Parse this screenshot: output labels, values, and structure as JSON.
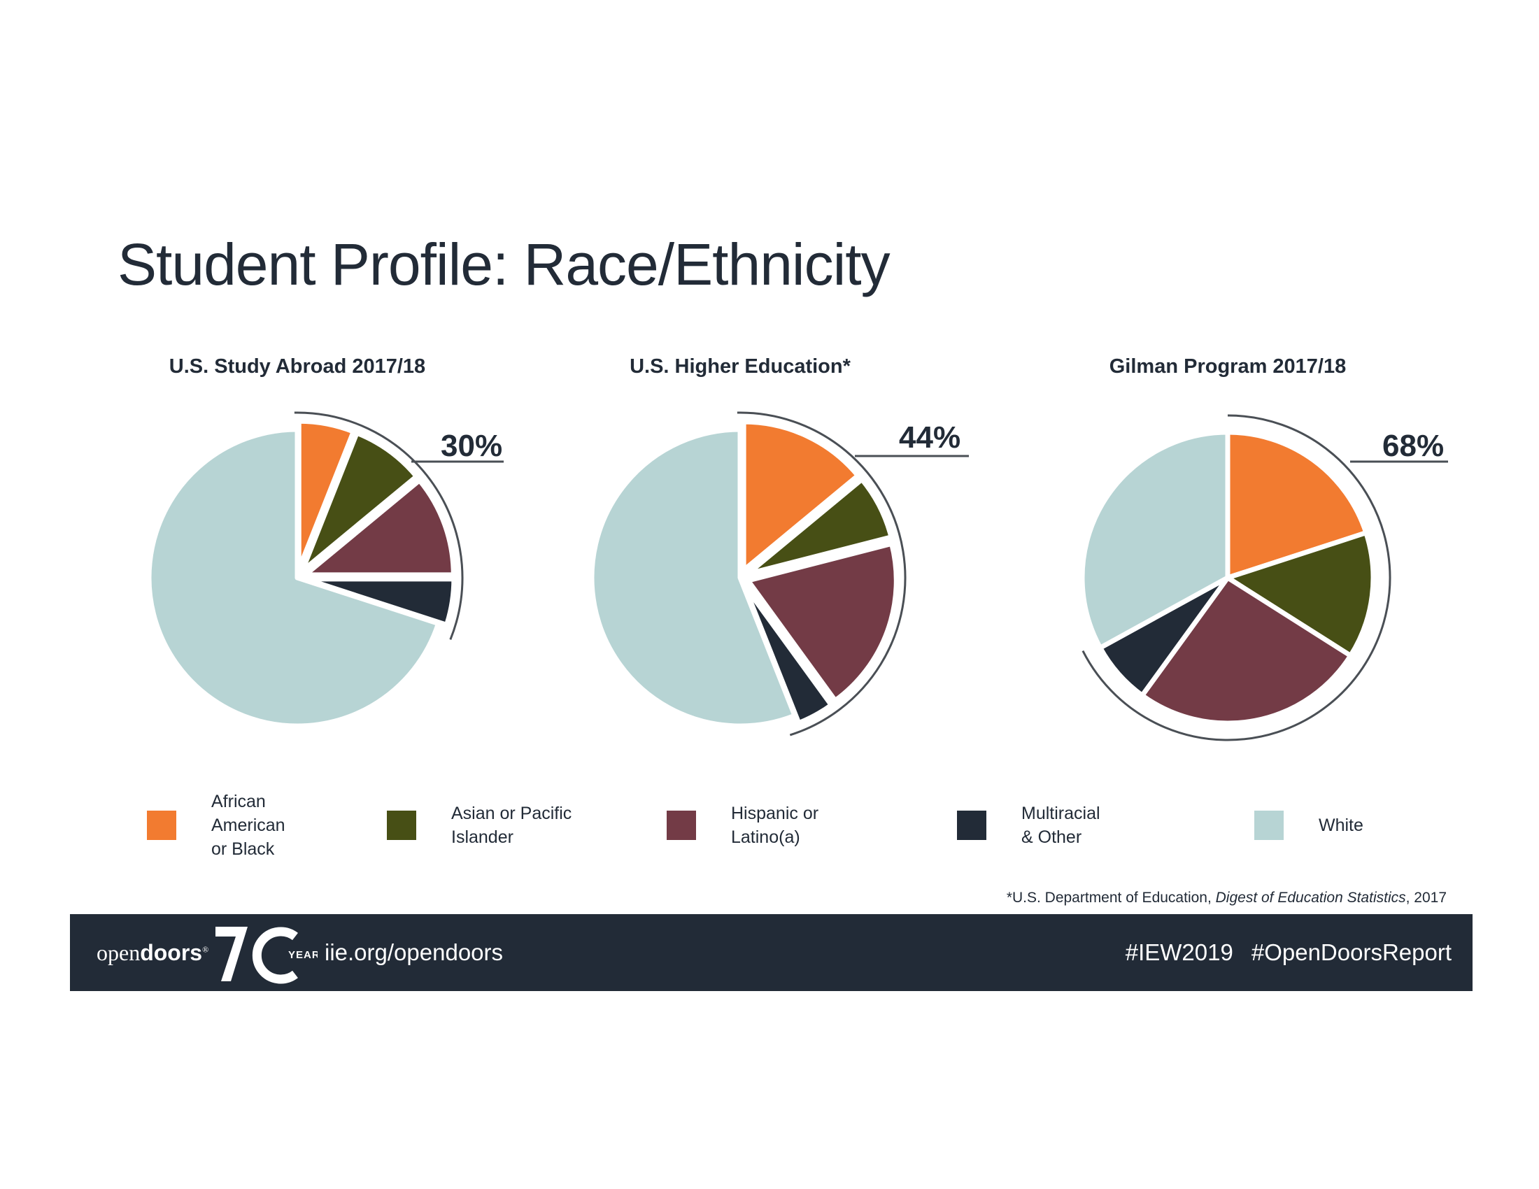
{
  "page": {
    "title": "Student Profile:  Race/Ethnicity",
    "footnote": {
      "prefix": "*U.S. Department of Education, ",
      "italic": "Digest of Education Statistics",
      "suffix": ", 2017"
    }
  },
  "colors": {
    "African American or Black": "#f27b30",
    "Asian or Pacific Islander": "#474f15",
    "Hispanic or Latino(a)": "#733b46",
    "Multiracial & Other": "#222b37",
    "White": "#b7d4d4",
    "text": "#222b37",
    "footer": "#222b37"
  },
  "legend": [
    {
      "key": "African American or Black",
      "label": "African\nAmerican\nor Black"
    },
    {
      "key": "Asian or Pacific Islander",
      "label": "Asian or Pacific\nIslander"
    },
    {
      "key": "Hispanic or Latino(a)",
      "label": "Hispanic or\nLatino(a)"
    },
    {
      "key": "Multiracial & Other",
      "label": "Multiracial\n& Other"
    },
    {
      "key": "White",
      "label": "White"
    }
  ],
  "chart_data": [
    {
      "type": "pie",
      "title": "U.S. Study Abroad 2017/18",
      "categories": [
        "African American or Black",
        "Asian or Pacific Islander",
        "Hispanic or Latino(a)",
        "Multiracial & Other",
        "White"
      ],
      "values": [
        6,
        8,
        11,
        5,
        70
      ],
      "exploded": [
        "African American or Black",
        "Asian or Pacific Islander",
        "Hispanic or Latino(a)",
        "Multiracial & Other"
      ],
      "callout": "30%"
    },
    {
      "type": "pie",
      "title": "U.S. Higher Education*",
      "categories": [
        "African American or Black",
        "Asian or Pacific Islander",
        "Hispanic or Latino(a)",
        "Multiracial & Other",
        "White"
      ],
      "values": [
        14,
        7,
        19,
        4,
        56
      ],
      "exploded": [
        "African American or Black",
        "Asian or Pacific Islander",
        "Hispanic or Latino(a)",
        "Multiracial & Other"
      ],
      "callout": "44%"
    },
    {
      "type": "pie",
      "title": "Gilman Program 2017/18",
      "categories": [
        "African American or Black",
        "Asian or Pacific Islander",
        "Hispanic or Latino(a)",
        "Multiracial & Other",
        "White"
      ],
      "values": [
        20,
        14,
        26,
        7,
        33
      ],
      "exploded": [],
      "callout": "68%"
    }
  ],
  "footer": {
    "brand_light": "open",
    "brand_bold": "doors",
    "registered": "®",
    "anniversary_number": "70",
    "anniversary_word": "YEARS",
    "url": "iie.org/opendoors",
    "hashtag_1": "#IEW2019",
    "hashtag_2": "#OpenDoorsReport"
  }
}
